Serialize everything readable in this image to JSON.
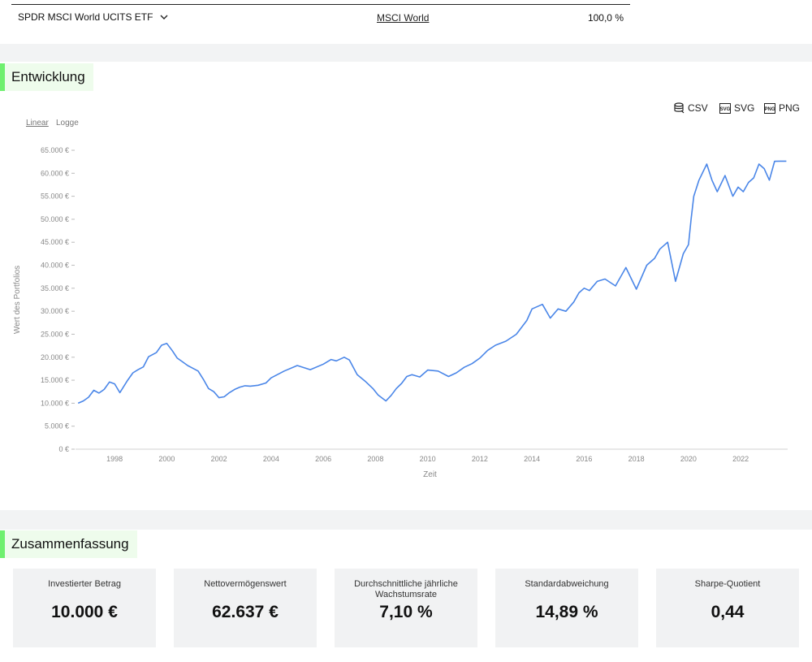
{
  "holding": {
    "name": "SPDR MSCI World UCITS ETF",
    "index": "MSCI World",
    "weight": "100,0 %"
  },
  "development": {
    "title": "Entwicklung",
    "exports": [
      "CSV",
      "SVG",
      "PNG"
    ],
    "scales": [
      "Linear",
      "Logge"
    ],
    "active_scale": "Linear"
  },
  "chart_data": {
    "type": "line",
    "title": "",
    "xlabel": "Zeit",
    "ylabel": "Wert des Portfolios",
    "xlim": [
      1996.5,
      2023.8
    ],
    "ylim": [
      0,
      65000
    ],
    "yticks": [
      0,
      5000,
      10000,
      15000,
      20000,
      25000,
      30000,
      35000,
      40000,
      45000,
      50000,
      55000,
      60000,
      65000
    ],
    "ytick_labels": [
      "0 €",
      "5.000 €",
      "10.000 €",
      "15.000 €",
      "20.000 €",
      "25.000 €",
      "30.000 €",
      "35.000 €",
      "40.000 €",
      "45.000 €",
      "50.000 €",
      "55.000 €",
      "60.000 €",
      "65.000 €"
    ],
    "xticks": [
      1998,
      2000,
      2002,
      2004,
      2006,
      2008,
      2010,
      2012,
      2014,
      2016,
      2018,
      2020,
      2022
    ],
    "xtick_labels": [
      "1998",
      "2000",
      "2002",
      "2004",
      "2006",
      "2008",
      "2010",
      "2012",
      "2014",
      "2016",
      "2018",
      "2020",
      "2022"
    ],
    "grid": false,
    "color": "#4a86e8",
    "series": [
      {
        "x": [
          1996.6,
          1996.8,
          1997.0,
          1997.2,
          1997.4,
          1997.6,
          1997.8,
          1998.0,
          1998.2,
          1998.5,
          1998.7,
          1998.9,
          1999.1,
          1999.3,
          1999.6,
          1999.8,
          2000.0,
          2000.2,
          2000.4,
          2000.6,
          2000.8,
          2001.0,
          2001.2,
          2001.4,
          2001.6,
          2001.8,
          2002.0,
          2002.2,
          2002.4,
          2002.6,
          2002.8,
          2003.0,
          2003.2,
          2003.5,
          2003.8,
          2004.0,
          2004.5,
          2005.0,
          2005.5,
          2006.0,
          2006.3,
          2006.5,
          2006.8,
          2007.0,
          2007.3,
          2007.6,
          2007.9,
          2008.1,
          2008.4,
          2008.6,
          2008.8,
          2009.0,
          2009.2,
          2009.4,
          2009.7,
          2010.0,
          2010.4,
          2010.8,
          2011.1,
          2011.4,
          2011.7,
          2012.0,
          2012.3,
          2012.6,
          2013.0,
          2013.4,
          2013.8,
          2014.0,
          2014.4,
          2014.7,
          2015.0,
          2015.3,
          2015.6,
          2015.8,
          2016.0,
          2016.2,
          2016.5,
          2016.8,
          2017.2,
          2017.6,
          2018.0,
          2018.4,
          2018.7,
          2018.9,
          2019.2,
          2019.5,
          2019.8,
          2020.0,
          2020.1,
          2020.2,
          2020.4,
          2020.7,
          2020.9,
          2021.1,
          2021.4,
          2021.7,
          2021.9,
          2022.1,
          2022.3,
          2022.5,
          2022.7,
          2022.9,
          2023.1,
          2023.3,
          2023.5,
          2023.6,
          2023.75
        ],
        "y": [
          10000,
          10500,
          11300,
          12800,
          12200,
          13000,
          14600,
          14200,
          12300,
          15000,
          16600,
          17300,
          17900,
          20100,
          21000,
          22600,
          23000,
          21500,
          19800,
          19000,
          18200,
          17600,
          17000,
          15200,
          13200,
          12500,
          11200,
          11400,
          12300,
          13000,
          13500,
          13800,
          13700,
          13900,
          14400,
          15500,
          17000,
          18200,
          17300,
          18500,
          19500,
          19200,
          20000,
          19400,
          16200,
          14800,
          13200,
          11800,
          10500,
          11700,
          13200,
          14300,
          15800,
          16200,
          15700,
          17200,
          17000,
          15800,
          16600,
          17800,
          18600,
          19800,
          21500,
          22600,
          23500,
          25000,
          28000,
          30500,
          31500,
          28500,
          30500,
          30000,
          32000,
          34000,
          35000,
          34500,
          36500,
          37000,
          35500,
          39500,
          34800,
          40000,
          41500,
          43500,
          45000,
          36500,
          42500,
          44500,
          50000,
          55000,
          58500,
          62000,
          58500,
          56000,
          59500,
          55000,
          57000,
          56000,
          58000,
          59000,
          62000,
          61000,
          58500,
          62600,
          62637,
          62637,
          62637
        ]
      }
    ]
  },
  "summary": {
    "title": "Zusammenfassung",
    "cards": [
      {
        "label": "Investierter Betrag",
        "value": "10.000 €"
      },
      {
        "label": "Nettovermögenswert",
        "value": "62.637 €"
      },
      {
        "label": "Durchschnittliche jährliche Wachstumsrate",
        "value": "7,10 %"
      },
      {
        "label": "Standardabweichung",
        "value": "14,89 %"
      },
      {
        "label": "Sharpe-Quotient",
        "value": "0,44"
      }
    ]
  }
}
